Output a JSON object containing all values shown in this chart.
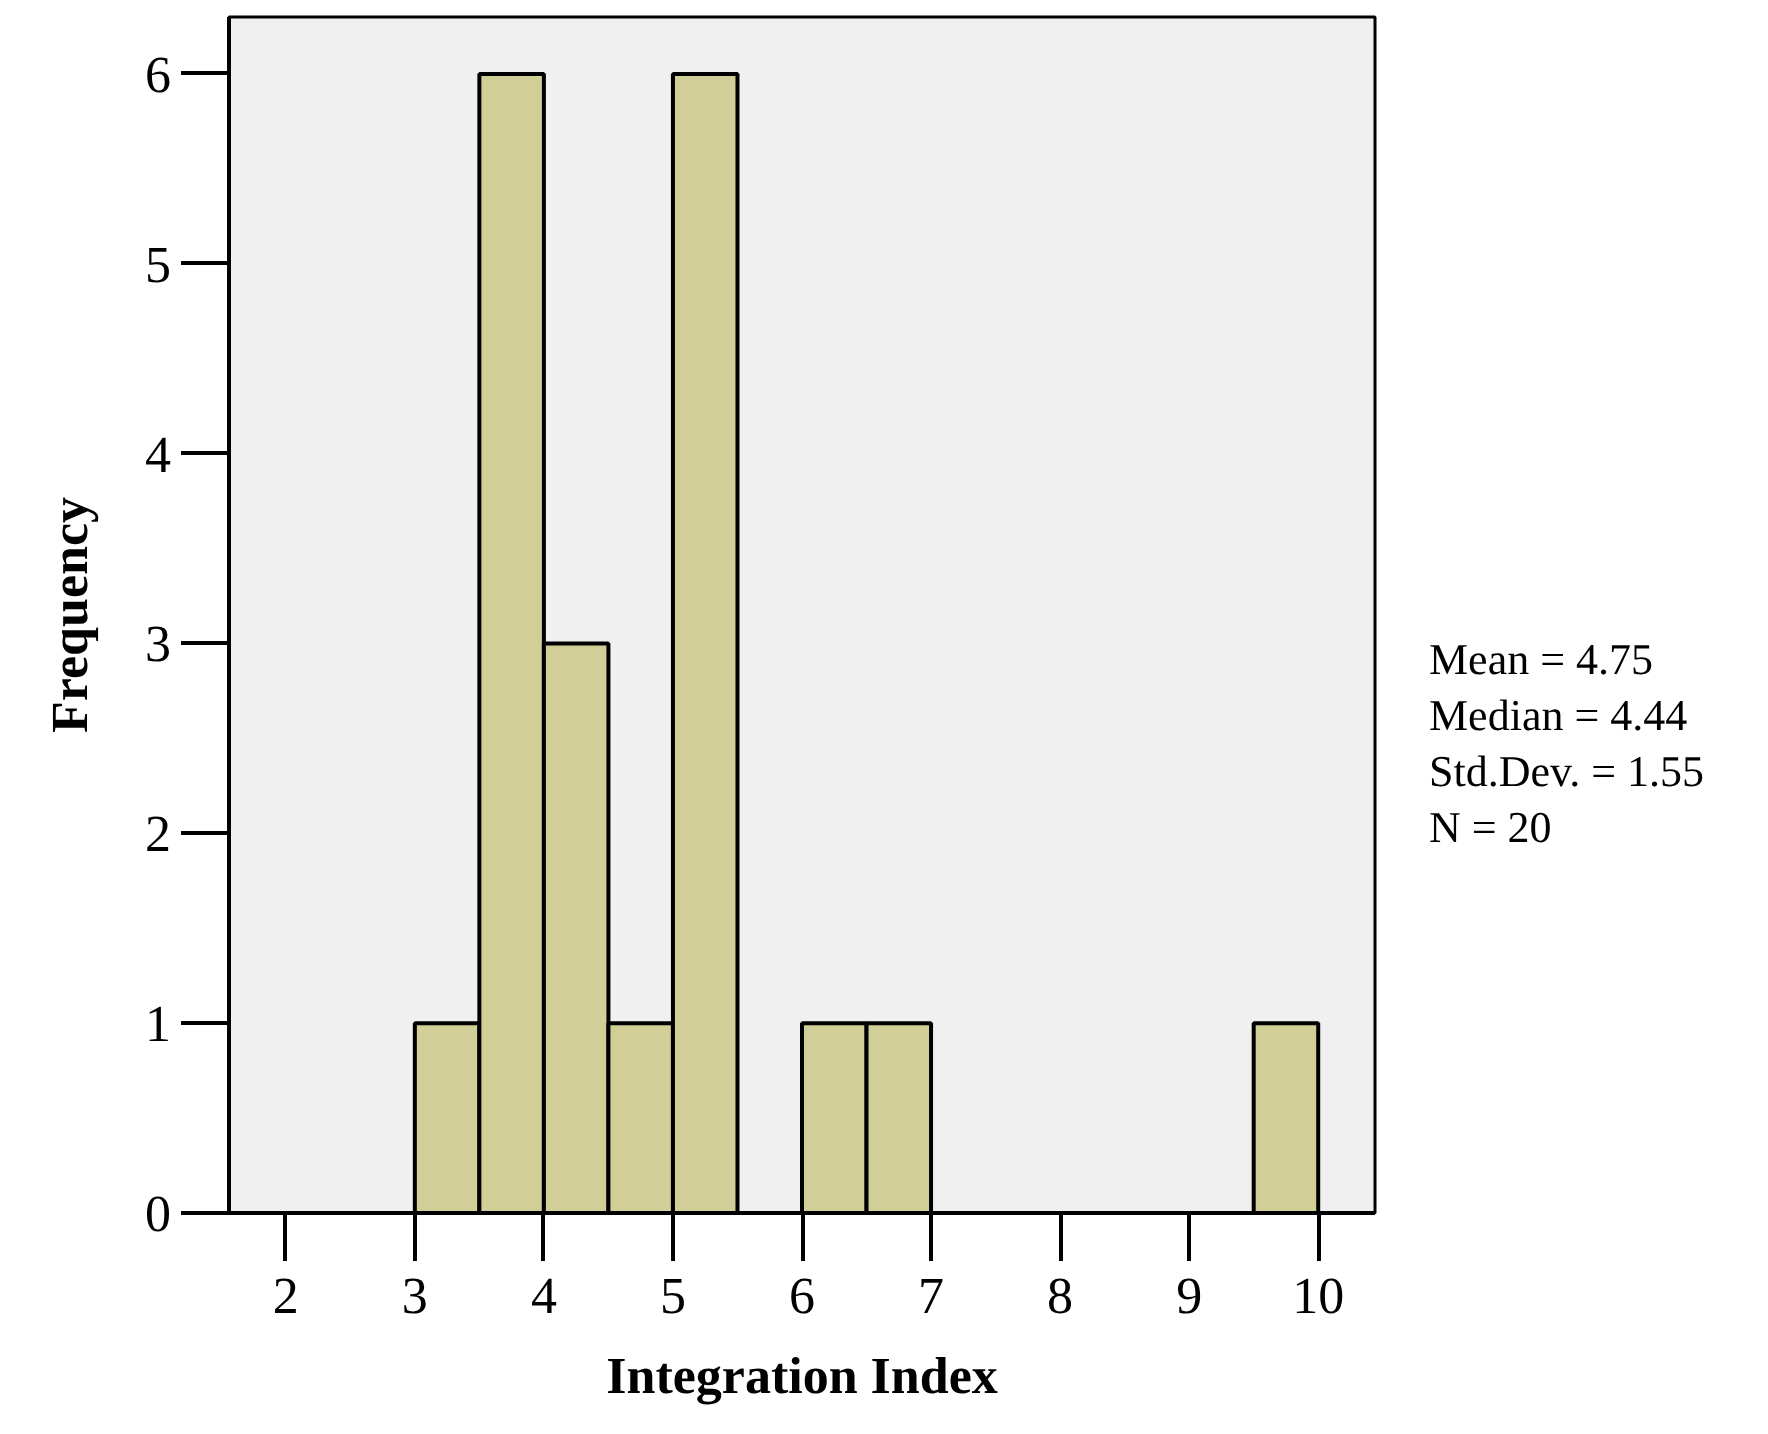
{
  "chart_data": {
    "type": "histogram",
    "xlabel": "Integration Index",
    "ylabel": "Frequency",
    "bins": [
      3,
      3.5,
      4,
      4.5,
      5,
      5.5,
      6,
      6.5,
      7,
      7.5,
      8,
      8.5,
      9,
      9.5,
      10
    ],
    "values": [
      1,
      6,
      3,
      1,
      6,
      0,
      1,
      1,
      0,
      0,
      0,
      0,
      0,
      1
    ],
    "color": "#d2ce98",
    "xlim": [
      1.56,
      10.44
    ],
    "ylim": [
      0,
      6.3
    ],
    "xticks": [
      2,
      3,
      4,
      5,
      6,
      7,
      8,
      9,
      10
    ],
    "yticks": [
      0,
      1,
      2,
      3,
      4,
      5,
      6
    ],
    "grid": false,
    "annotations": [
      "Mean = 4.75",
      "Median = 4.44",
      "Std.Dev. = 1.55",
      "N = 20"
    ]
  }
}
